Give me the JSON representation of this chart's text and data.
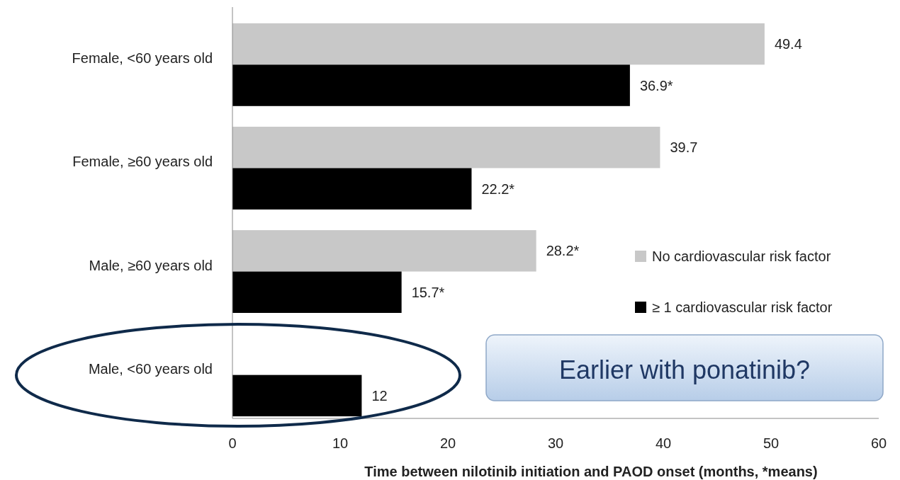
{
  "chart_data": {
    "type": "bar",
    "orientation": "horizontal",
    "xlabel": "Time between nilotinib initiation and PAOD onset (months, *means)",
    "categories": [
      "Female, <60 years old",
      "Female, ≥60 years old",
      "Male, ≥60  years old",
      "Male, <60 years old"
    ],
    "series": [
      {
        "name": "No cardiovascular risk factor",
        "color": "#c8c8c8",
        "values": [
          49.4,
          39.7,
          28.2,
          null
        ],
        "value_labels": [
          "49.4",
          "39.7",
          "28.2*",
          null
        ]
      },
      {
        "name": "≥ 1 cardiovascular risk factor",
        "color": "#000000",
        "values": [
          36.9,
          22.2,
          15.7,
          12
        ],
        "value_labels": [
          "36.9*",
          "22.2*",
          "15.7*",
          "12"
        ]
      }
    ],
    "xlim": [
      0,
      60
    ],
    "xticks": [
      0,
      10,
      20,
      30,
      40,
      50,
      60
    ],
    "grid": false,
    "legend": "right",
    "annotations": [
      "Earlier with ponatinib?"
    ]
  }
}
